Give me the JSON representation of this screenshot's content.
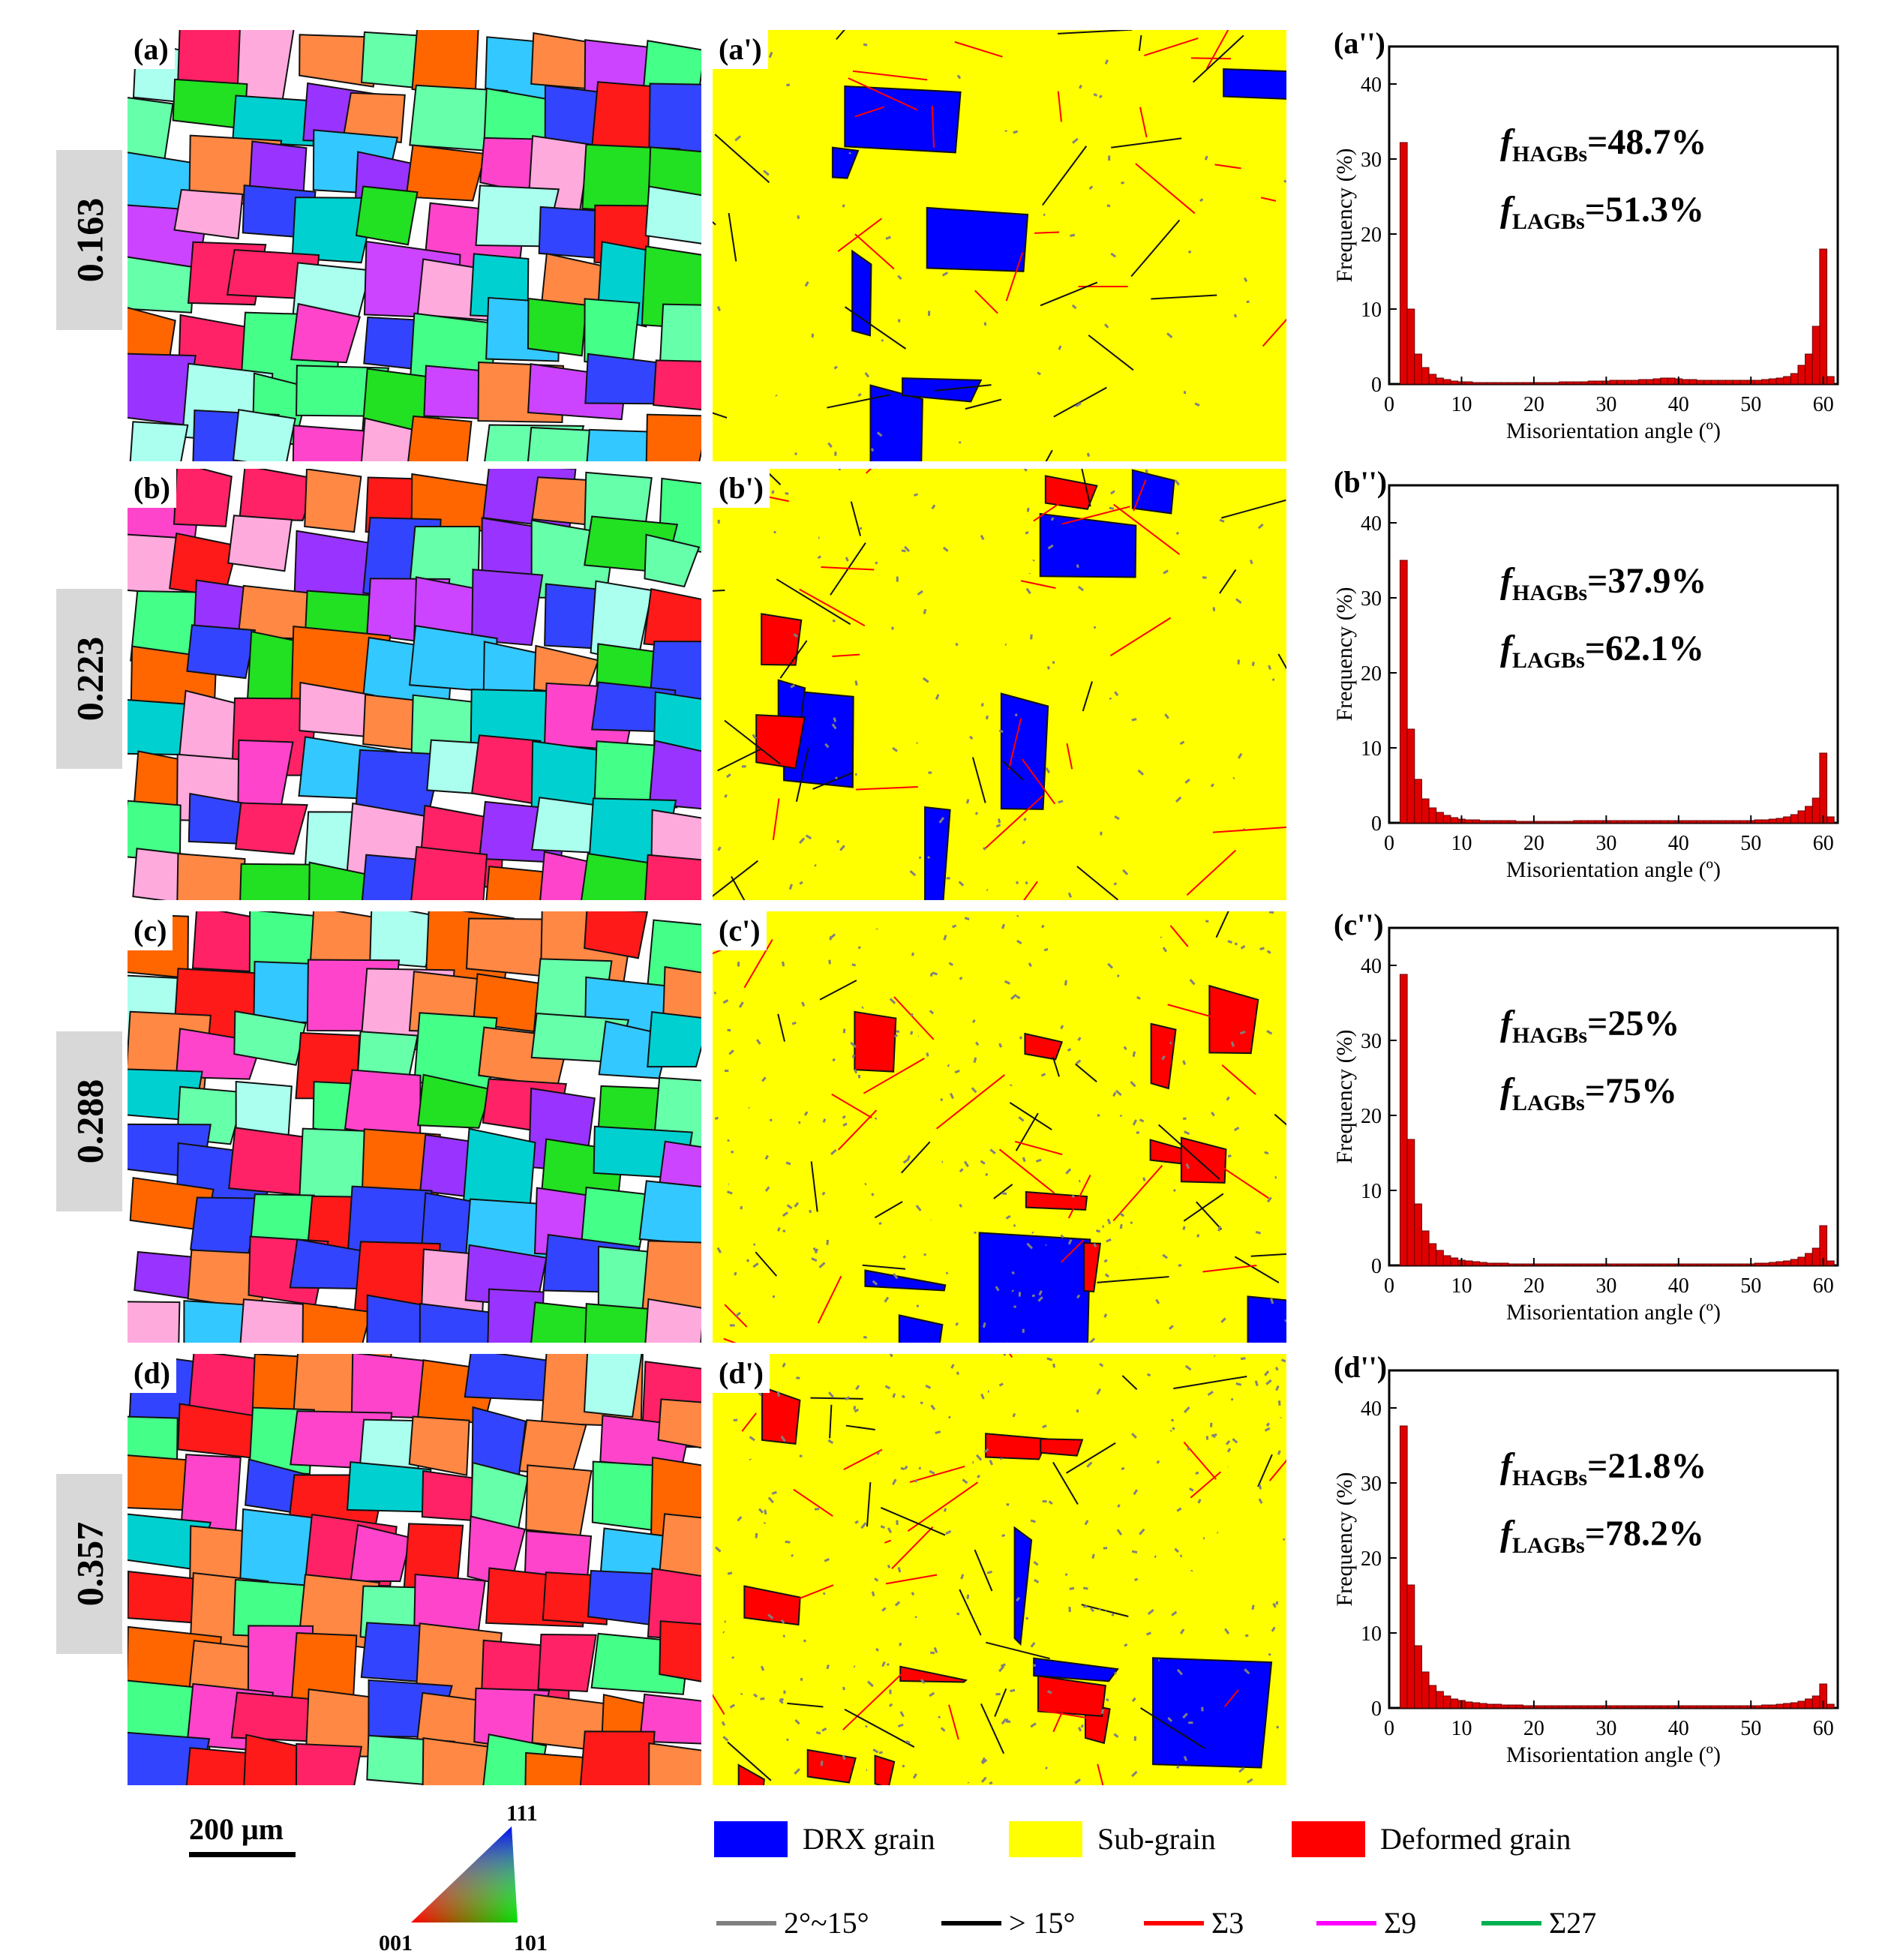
{
  "rows": [
    {
      "strain": "0.163",
      "ebsd_label": "(a)",
      "phase_label": "(a')",
      "hist_label": "(a'')",
      "f_hagb": "=48.7%",
      "f_lagb": "=51.3%"
    },
    {
      "strain": "0.223",
      "ebsd_label": "(b)",
      "phase_label": "(b')",
      "hist_label": "(b'')",
      "f_hagb": "=37.9%",
      "f_lagb": "=62.1%"
    },
    {
      "strain": "0.288",
      "ebsd_label": "(c)",
      "phase_label": "(c')",
      "hist_label": "(c'')",
      "f_hagb": "=25%",
      "f_lagb": "=75%"
    },
    {
      "strain": "0.357",
      "ebsd_label": "(d)",
      "phase_label": "(d')",
      "hist_label": "(d'')",
      "f_hagb": "=21.8%",
      "f_lagb": "=78.2%"
    }
  ],
  "f_symbol": "f",
  "sub_hagb": "HAGBs",
  "sub_lagb": "LAGBs",
  "chart_data": [
    {
      "type": "bar",
      "title": "(a'')",
      "xlabel": "Misorientation angle (º)",
      "ylabel": "Frequency (%)",
      "xlim": [
        0,
        62
      ],
      "ylim": [
        0,
        45
      ],
      "xticks": [
        0,
        10,
        20,
        30,
        40,
        50,
        60
      ],
      "yticks": [
        0,
        10,
        20,
        30,
        40
      ],
      "x": [
        2,
        3,
        4,
        5,
        6,
        7,
        8,
        9,
        10,
        11,
        12,
        13,
        14,
        15,
        16,
        17,
        18,
        19,
        20,
        21,
        22,
        23,
        24,
        25,
        26,
        27,
        28,
        29,
        30,
        31,
        32,
        33,
        34,
        35,
        36,
        37,
        38,
        39,
        40,
        41,
        42,
        43,
        44,
        45,
        46,
        47,
        48,
        49,
        50,
        51,
        52,
        53,
        54,
        55,
        56,
        57,
        58,
        59,
        60,
        61
      ],
      "values": [
        32.2,
        10.0,
        4.0,
        2.2,
        1.3,
        0.8,
        0.6,
        0.4,
        0.3,
        0.3,
        0.2,
        0.2,
        0.2,
        0.2,
        0.2,
        0.2,
        0.2,
        0.2,
        0.2,
        0.2,
        0.2,
        0.2,
        0.3,
        0.3,
        0.3,
        0.3,
        0.4,
        0.4,
        0.4,
        0.5,
        0.5,
        0.5,
        0.5,
        0.6,
        0.6,
        0.7,
        0.8,
        0.8,
        0.7,
        0.6,
        0.6,
        0.5,
        0.5,
        0.5,
        0.5,
        0.5,
        0.5,
        0.5,
        0.5,
        0.5,
        0.6,
        0.7,
        0.8,
        1.0,
        1.4,
        2.5,
        4.0,
        7.7,
        18.0,
        1.0
      ]
    },
    {
      "type": "bar",
      "title": "(b'')",
      "xlabel": "Misorientation angle (º)",
      "ylabel": "Frequency (%)",
      "xlim": [
        0,
        62
      ],
      "ylim": [
        0,
        45
      ],
      "xticks": [
        0,
        10,
        20,
        30,
        40,
        50,
        60
      ],
      "yticks": [
        0,
        10,
        20,
        30,
        40
      ],
      "x": [
        2,
        3,
        4,
        5,
        6,
        7,
        8,
        9,
        10,
        11,
        12,
        13,
        14,
        15,
        16,
        17,
        18,
        19,
        20,
        21,
        22,
        23,
        24,
        25,
        26,
        27,
        28,
        29,
        30,
        31,
        32,
        33,
        34,
        35,
        36,
        37,
        38,
        39,
        40,
        41,
        42,
        43,
        44,
        45,
        46,
        47,
        48,
        49,
        50,
        51,
        52,
        53,
        54,
        55,
        56,
        57,
        58,
        59,
        60,
        61
      ],
      "values": [
        35.0,
        12.5,
        5.8,
        3.2,
        2.0,
        1.4,
        1.0,
        0.7,
        0.5,
        0.4,
        0.4,
        0.3,
        0.3,
        0.3,
        0.3,
        0.3,
        0.2,
        0.2,
        0.2,
        0.2,
        0.2,
        0.2,
        0.2,
        0.2,
        0.3,
        0.3,
        0.3,
        0.3,
        0.3,
        0.3,
        0.3,
        0.3,
        0.3,
        0.3,
        0.3,
        0.3,
        0.3,
        0.3,
        0.3,
        0.3,
        0.3,
        0.3,
        0.3,
        0.3,
        0.3,
        0.3,
        0.3,
        0.3,
        0.3,
        0.4,
        0.4,
        0.5,
        0.6,
        0.8,
        1.1,
        1.6,
        2.2,
        3.3,
        9.3,
        0.8
      ]
    },
    {
      "type": "bar",
      "title": "(c'')",
      "xlabel": "Misorientation angle (º)",
      "ylabel": "Frequency (%)",
      "xlim": [
        0,
        62
      ],
      "ylim": [
        0,
        45
      ],
      "xticks": [
        0,
        10,
        20,
        30,
        40,
        50,
        60
      ],
      "yticks": [
        0,
        10,
        20,
        30,
        40
      ],
      "x": [
        2,
        3,
        4,
        5,
        6,
        7,
        8,
        9,
        10,
        11,
        12,
        13,
        14,
        15,
        16,
        17,
        18,
        19,
        20,
        21,
        22,
        23,
        24,
        25,
        26,
        27,
        28,
        29,
        30,
        31,
        32,
        33,
        34,
        35,
        36,
        37,
        38,
        39,
        40,
        41,
        42,
        43,
        44,
        45,
        46,
        47,
        48,
        49,
        50,
        51,
        52,
        53,
        54,
        55,
        56,
        57,
        58,
        59,
        60,
        61
      ],
      "values": [
        38.8,
        16.8,
        8.2,
        4.6,
        2.9,
        2.0,
        1.3,
        1.0,
        0.7,
        0.6,
        0.5,
        0.4,
        0.3,
        0.3,
        0.3,
        0.2,
        0.2,
        0.2,
        0.2,
        0.2,
        0.2,
        0.2,
        0.2,
        0.2,
        0.2,
        0.2,
        0.2,
        0.2,
        0.2,
        0.2,
        0.2,
        0.2,
        0.2,
        0.2,
        0.2,
        0.2,
        0.2,
        0.2,
        0.2,
        0.2,
        0.2,
        0.2,
        0.2,
        0.2,
        0.2,
        0.2,
        0.2,
        0.2,
        0.2,
        0.3,
        0.3,
        0.4,
        0.5,
        0.6,
        0.8,
        1.1,
        1.6,
        2.3,
        5.3,
        0.6
      ]
    },
    {
      "type": "bar",
      "title": "(d'')",
      "xlabel": "Misorientation angle (º)",
      "ylabel": "Frequency (%)",
      "xlim": [
        0,
        62
      ],
      "ylim": [
        0,
        45
      ],
      "xticks": [
        0,
        10,
        20,
        30,
        40,
        50,
        60
      ],
      "yticks": [
        0,
        10,
        20,
        30,
        40
      ],
      "x": [
        2,
        3,
        4,
        5,
        6,
        7,
        8,
        9,
        10,
        11,
        12,
        13,
        14,
        15,
        16,
        17,
        18,
        19,
        20,
        21,
        22,
        23,
        24,
        25,
        26,
        27,
        28,
        29,
        30,
        31,
        32,
        33,
        34,
        35,
        36,
        37,
        38,
        39,
        40,
        41,
        42,
        43,
        44,
        45,
        46,
        47,
        48,
        49,
        50,
        51,
        52,
        53,
        54,
        55,
        56,
        57,
        58,
        59,
        60,
        61
      ],
      "values": [
        37.6,
        16.4,
        8.3,
        4.8,
        3.0,
        2.2,
        1.6,
        1.2,
        1.0,
        0.8,
        0.7,
        0.6,
        0.5,
        0.5,
        0.4,
        0.4,
        0.4,
        0.3,
        0.3,
        0.3,
        0.3,
        0.3,
        0.3,
        0.3,
        0.3,
        0.3,
        0.3,
        0.3,
        0.3,
        0.3,
        0.3,
        0.3,
        0.3,
        0.3,
        0.3,
        0.3,
        0.3,
        0.3,
        0.3,
        0.3,
        0.3,
        0.3,
        0.3,
        0.3,
        0.3,
        0.3,
        0.3,
        0.3,
        0.3,
        0.3,
        0.4,
        0.4,
        0.5,
        0.6,
        0.7,
        0.9,
        1.2,
        1.6,
        3.2,
        0.5
      ]
    }
  ],
  "scale_bar": "200 μm",
  "ipf": {
    "top": "111",
    "left": "001",
    "right": "101"
  },
  "legend_fill": [
    {
      "label": "DRX grain",
      "color": "#0000ff"
    },
    {
      "label": "Sub-grain",
      "color": "#ffff00"
    },
    {
      "label": "Deformed grain",
      "color": "#ff0000"
    }
  ],
  "legend_lines": [
    {
      "label": "2°~15°",
      "color": "#808080"
    },
    {
      "label": "> 15°",
      "color": "#000000"
    },
    {
      "label": "Σ3",
      "color": "#ff0000"
    },
    {
      "label": "Σ9",
      "color": "#ff00ff"
    },
    {
      "label": "Σ27",
      "color": "#00b050"
    }
  ],
  "bar_color": "#e00000"
}
